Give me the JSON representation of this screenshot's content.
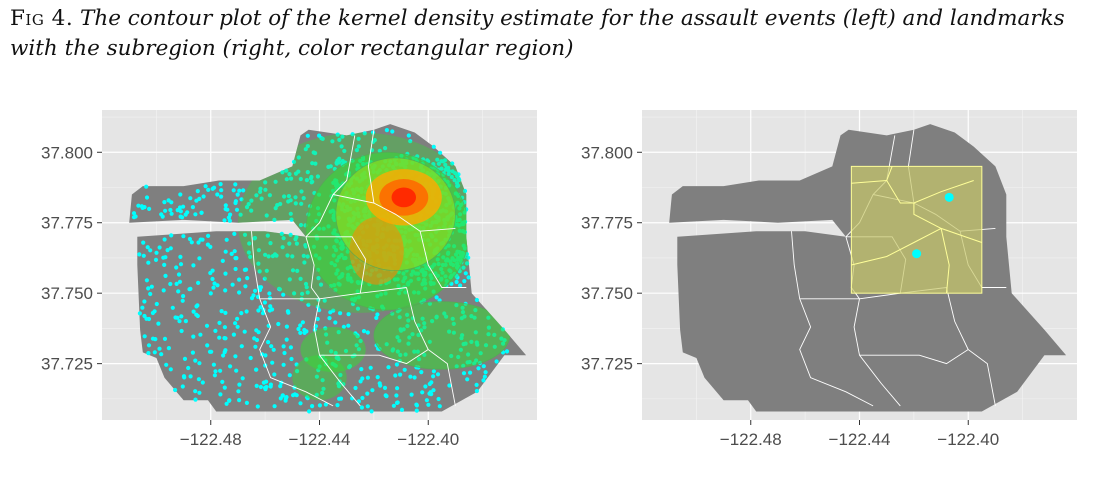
{
  "caption": {
    "label": "Fig 4.",
    "text": "The contour plot of the kernel density estimate for the assault events (left) and landmarks with the subregion (right, color rectangular region)"
  },
  "colors": {
    "panel_bg": "#e5e5e5",
    "grid": "#ffffff",
    "map_fill": "#7f7f7f",
    "district_lines": "#ffffff",
    "points": "#00ffff",
    "density_low": "#33dd33",
    "density_mid": "#88dd22",
    "density_high": "#ff2200",
    "subregion_fill": "#c8c86a",
    "subregion_border": "#ffff99",
    "axis_text": "#4d4d4d"
  },
  "chart_data": [
    {
      "type": "scatter",
      "panel": "left",
      "title": "",
      "xlabel": "",
      "ylabel": "",
      "xlim": [
        -122.52,
        -122.36
      ],
      "ylim": [
        37.705,
        37.815
      ],
      "x_ticks": [
        -122.48,
        -122.44,
        -122.4
      ],
      "x_tick_labels": [
        "−122.48",
        "−122.44",
        "−122.40"
      ],
      "y_ticks": [
        37.725,
        37.75,
        37.775,
        37.8
      ],
      "y_tick_labels": [
        "37.725",
        "37.750",
        "37.775",
        "37.800"
      ],
      "grid": true,
      "layers": [
        "map polygon",
        "assault event points",
        "kernel density contours"
      ],
      "density_peaks": [
        {
          "lon": -122.409,
          "lat": 37.784,
          "level": "high"
        },
        {
          "lon": -122.419,
          "lat": 37.765,
          "level": "medium"
        },
        {
          "lon": -122.39,
          "lat": 37.733,
          "level": "low"
        }
      ]
    },
    {
      "type": "scatter",
      "panel": "right",
      "title": "",
      "xlabel": "",
      "ylabel": "",
      "xlim": [
        -122.52,
        -122.36
      ],
      "ylim": [
        37.705,
        37.815
      ],
      "x_ticks": [
        -122.48,
        -122.44,
        -122.4
      ],
      "x_tick_labels": [
        "−122.48",
        "−122.44",
        "−122.40"
      ],
      "y_ticks": [
        37.725,
        37.75,
        37.775,
        37.8
      ],
      "y_tick_labels": [
        "37.725",
        "37.750",
        "37.775",
        "37.800"
      ],
      "grid": true,
      "subregion": {
        "lon_min": -122.443,
        "lon_max": -122.395,
        "lat_min": 37.75,
        "lat_max": 37.795
      },
      "landmarks": [
        {
          "lon": -122.407,
          "lat": 37.784
        },
        {
          "lon": -122.419,
          "lat": 37.764
        }
      ]
    }
  ]
}
